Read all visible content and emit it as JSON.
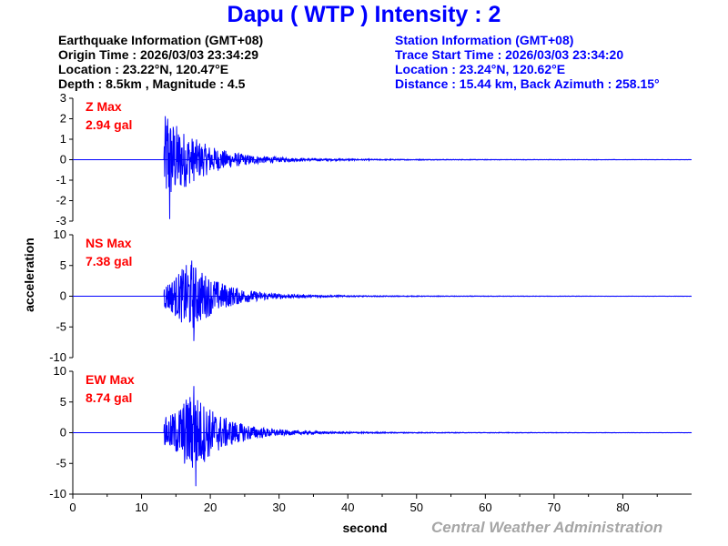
{
  "title": "Dapu  ( WTP )  Intensity : 2",
  "earthquake_info": {
    "header": "Earthquake Information  (GMT+08)",
    "origin_time": "Origin Time : 2026/03/03 23:34:29",
    "location": "Location : 23.22°N, 120.47°E",
    "depth_magnitude": "Depth : 8.5km , Magnitude : 4.5"
  },
  "station_info": {
    "header": "Station Information  (GMT+08)",
    "trace_start": "Trace Start Time : 2026/03/03 23:34:20",
    "location": "Location : 23.24°N, 120.62°E",
    "distance": "Distance : 15.44 km, Back Azimuth : 258.15°"
  },
  "credit": "Central Weather Administration",
  "colors": {
    "trace": "#0000ff",
    "max_label": "#ff0000",
    "title": "#0000ff",
    "credit": "#a6a6a6"
  },
  "chart_data": {
    "type": "line",
    "xlabel": "second",
    "ylabel": "acceleration",
    "xlim": [
      0,
      90
    ],
    "xticks": [
      0,
      10,
      20,
      30,
      40,
      50,
      60,
      70,
      80
    ],
    "grid": false,
    "panels": [
      {
        "component": "Z",
        "max_label": "Z Max",
        "max_value": "2.94 gal",
        "ylim": [
          -3,
          3
        ],
        "yticks": [
          -3,
          -2,
          -1,
          0,
          1,
          2,
          3
        ],
        "onset": 13.3,
        "peak_time": 13.8,
        "peak_positive": 2.0,
        "peak_negative": -2.9,
        "decay": 5.0
      },
      {
        "component": "NS",
        "max_label": "NS Max",
        "max_value": "7.38 gal",
        "ylim": [
          -10,
          10
        ],
        "yticks": [
          -10,
          -5,
          0,
          5,
          10
        ],
        "onset": 13.3,
        "peak_time": 17.3,
        "peak_positive": 5.8,
        "peak_negative": -7.3,
        "decay": 4.5
      },
      {
        "component": "EW",
        "max_label": "EW Max",
        "max_value": "8.74 gal",
        "ylim": [
          -10,
          10
        ],
        "yticks": [
          -10,
          -5,
          0,
          5,
          10
        ],
        "onset": 13.3,
        "peak_time": 17.6,
        "peak_positive": 7.6,
        "peak_negative": -8.7,
        "decay": 4.5
      }
    ]
  }
}
